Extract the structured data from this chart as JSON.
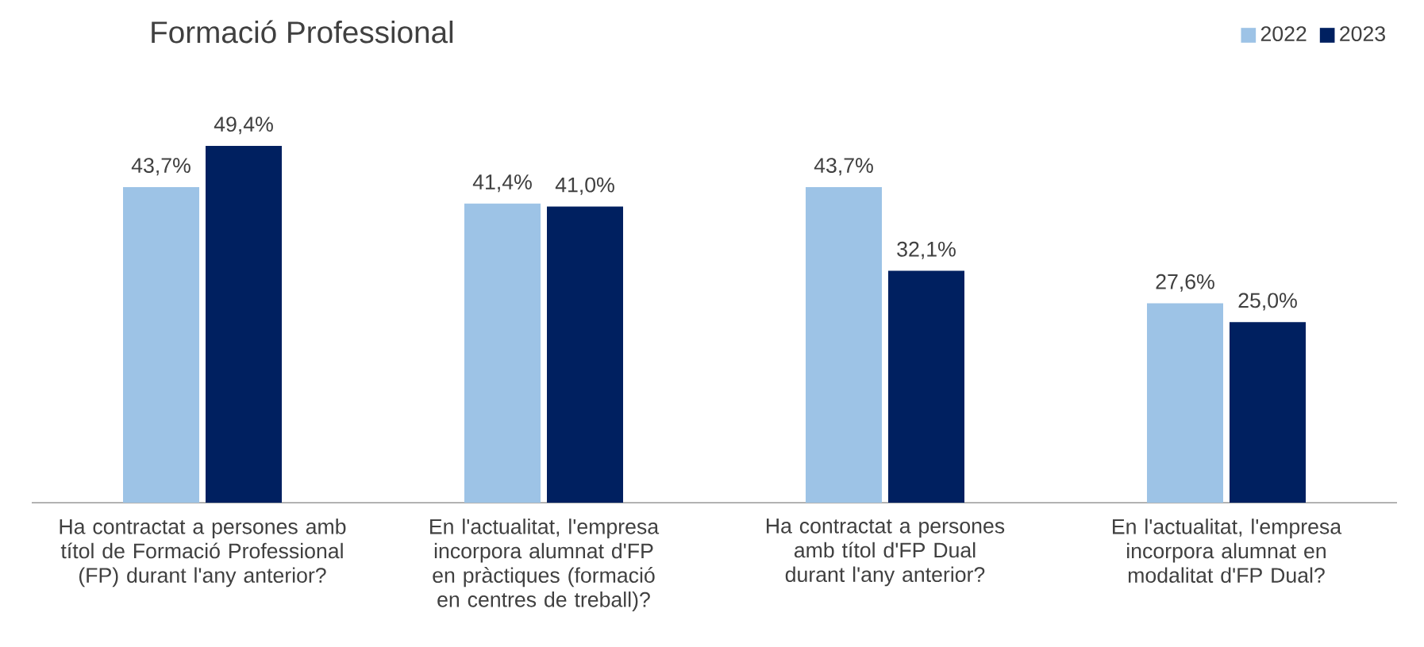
{
  "chart_data": {
    "type": "bar",
    "title": "Formació Professional",
    "categories": [
      "Ha contractat a persones amb títol de Formació Professional (FP) durant l'any anterior?",
      "En l'actualitat, l'empresa incorpora alumnat d'FP en pràctiques (formació en centres de treball)?",
      "Ha contractat a persones amb títol d'FP Dual durant l'any anterior?",
      "En l'actualitat, l'empresa incorpora alumnat en modalitat d'FP Dual?"
    ],
    "series": [
      {
        "name": "2022",
        "color": "#9dc3e6",
        "values": [
          43.7,
          41.4,
          43.7,
          27.6
        ],
        "value_labels": [
          "43,7%",
          "41,4%",
          "43,7%",
          "27,6%"
        ]
      },
      {
        "name": "2023",
        "color": "#002060",
        "values": [
          49.4,
          41.0,
          32.1,
          25.0
        ],
        "value_labels": [
          "49,4%",
          "41,0%",
          "32,1%",
          "25,0%"
        ]
      }
    ],
    "legend": "top right"
  }
}
